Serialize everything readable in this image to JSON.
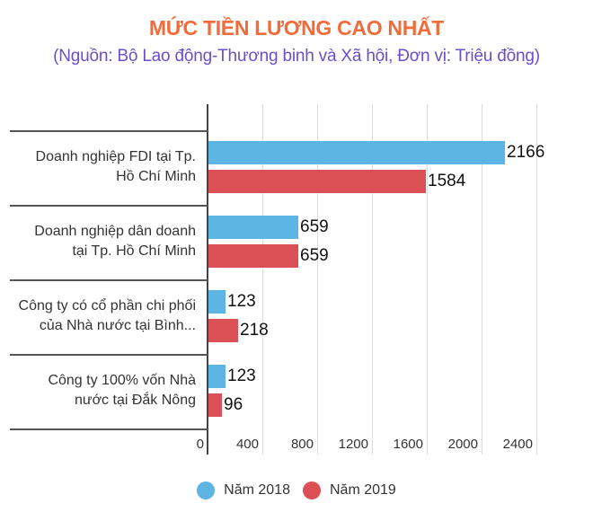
{
  "header": {
    "title": "MỨC TIỀN LƯƠNG CAO NHẤT",
    "subtitle": "(Nguồn:  Bộ Lao động-Thương binh và Xã hội, Đơn vị: Triệu đồng)"
  },
  "colors": {
    "title": "#F26B3A",
    "subtitle": "#6A4FC8",
    "series_2018": "#5DB5E4",
    "series_2019": "#DB5055"
  },
  "axis": {
    "ticks": [
      "0",
      "400",
      "800",
      "1200",
      "1600",
      "2000",
      "2400"
    ]
  },
  "legend": {
    "items": [
      {
        "label": "Năm 2018",
        "color": "#5DB5E4"
      },
      {
        "label": "Năm 2019",
        "color": "#DB5055"
      }
    ]
  },
  "categories": [
    {
      "line1": "Doanh nghiệp FDI tại Tp.",
      "line2": "Hồ Chí Minh",
      "v2018": "2166",
      "v2019": "1584"
    },
    {
      "line1": "Doanh nghiệp dân doanh",
      "line2": "tại Tp. Hồ Chí Minh",
      "v2018": "659",
      "v2019": "659"
    },
    {
      "line1": "Công ty có cổ phần chi phối",
      "line2": "của Nhà nước tại Bình...",
      "v2018": "123",
      "v2019": "218"
    },
    {
      "line1": "Công ty 100% vốn Nhà",
      "line2": "nước tại Đắk Nông",
      "v2018": "123",
      "v2019": "96"
    }
  ],
  "chart_data": {
    "type": "bar",
    "orientation": "horizontal",
    "title": "MỨC TIỀN LƯƠNG CAO NHẤT",
    "subtitle": "(Nguồn:  Bộ Lao động-Thương binh và Xã hội, Đơn vị: Triệu đồng)",
    "categories": [
      "Doanh nghiệp FDI tại Tp. Hồ Chí Minh",
      "Doanh nghiệp dân doanh tại Tp. Hồ Chí Minh",
      "Công ty có cổ phần chi phối của Nhà nước tại Bình...",
      "Công ty 100% vốn Nhà nước tại Đắk Nông"
    ],
    "series": [
      {
        "name": "Năm 2018",
        "color": "#5DB5E4",
        "values": [
          2166,
          659,
          123,
          123
        ]
      },
      {
        "name": "Năm 2019",
        "color": "#DB5055",
        "values": [
          1584,
          659,
          218,
          96
        ]
      }
    ],
    "xlabel": "",
    "ylabel": "",
    "xlim": [
      0,
      2400
    ],
    "xticks": [
      0,
      400,
      800,
      1200,
      1600,
      2000,
      2400
    ],
    "grid": true,
    "data_labels": true,
    "legend_position": "bottom"
  }
}
